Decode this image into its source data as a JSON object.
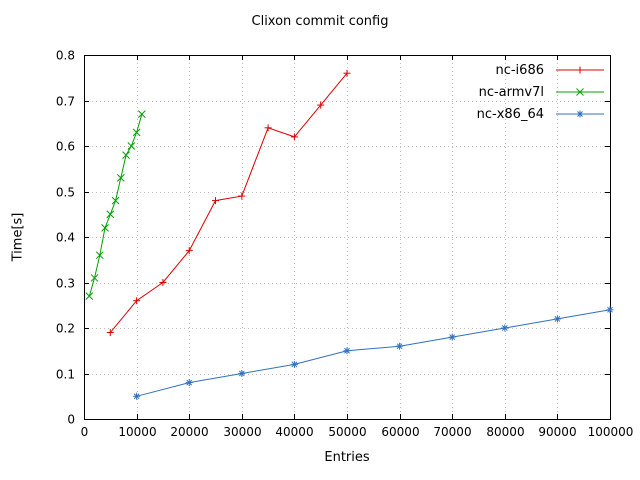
{
  "chart_data": {
    "type": "line",
    "title": "Clixon commit config",
    "xlabel": "Entries",
    "ylabel": "Time[s]",
    "xlim": [
      0,
      100000
    ],
    "ylim": [
      0,
      0.8
    ],
    "xtick_step": 10000,
    "ytick_step": 0.1,
    "grid": true,
    "legend_position": "top-right",
    "series": [
      {
        "name": "nc-i686",
        "color": "#e00000",
        "marker": "plus",
        "x": [
          5000,
          10000,
          15000,
          20000,
          25000,
          30000,
          35000,
          40000,
          45000,
          50000
        ],
        "y": [
          0.19,
          0.26,
          0.3,
          0.37,
          0.48,
          0.49,
          0.64,
          0.62,
          0.69,
          0.76
        ]
      },
      {
        "name": "nc-armv7l",
        "color": "#00a000",
        "marker": "cross",
        "x": [
          1000,
          2000,
          3000,
          4000,
          5000,
          6000,
          7000,
          8000,
          9000,
          10000,
          11000
        ],
        "y": [
          0.27,
          0.31,
          0.36,
          0.42,
          0.45,
          0.48,
          0.53,
          0.58,
          0.6,
          0.63,
          0.67
        ]
      },
      {
        "name": "nc-x86_64",
        "color": "#3070c0",
        "marker": "asterisk",
        "x": [
          10000,
          20000,
          30000,
          40000,
          50000,
          60000,
          70000,
          80000,
          90000,
          100000
        ],
        "y": [
          0.05,
          0.08,
          0.1,
          0.12,
          0.15,
          0.16,
          0.18,
          0.2,
          0.22,
          0.24
        ]
      }
    ]
  }
}
